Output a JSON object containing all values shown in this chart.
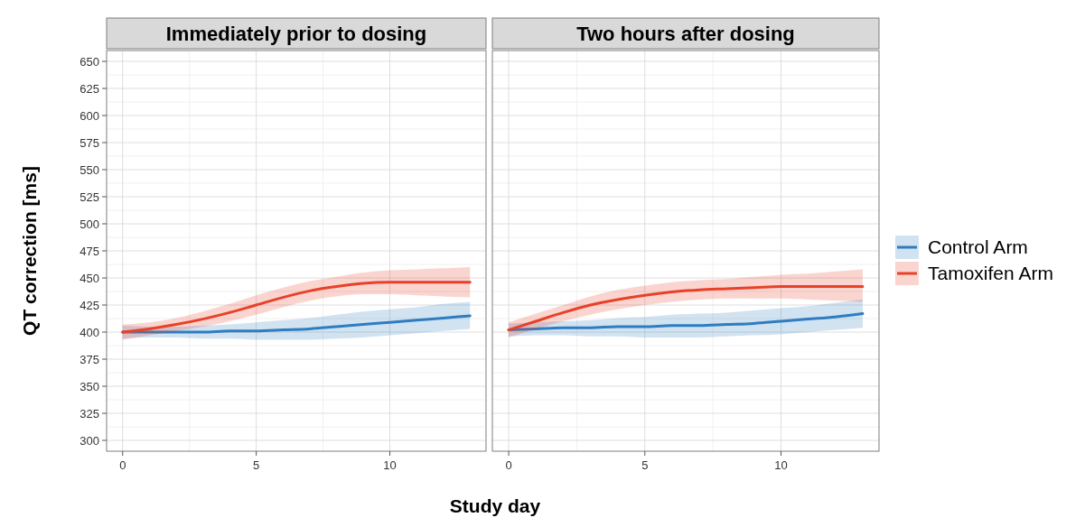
{
  "chart_data": [
    {
      "type": "line",
      "title": "Immediately prior to dosing",
      "xlabel": "Study day",
      "ylabel": "QT correction [ms]",
      "x": [
        0,
        1,
        2,
        3,
        4,
        5,
        6,
        7,
        8,
        9,
        10,
        11,
        12,
        13
      ],
      "xlim": [
        -0.6,
        13.6
      ],
      "xticks": [
        0,
        5,
        10
      ],
      "ylim": [
        290,
        660
      ],
      "yticks": [
        300,
        325,
        350,
        375,
        400,
        425,
        450,
        475,
        500,
        525,
        550,
        575,
        600,
        625,
        650
      ],
      "grid": true,
      "legend": false,
      "series": [
        {
          "color": "#2f7dc0",
          "values": [
            400,
            400,
            400,
            400,
            401,
            401,
            402,
            403,
            405,
            407,
            409,
            411,
            413,
            415
          ],
          "lower": [
            394,
            395,
            395,
            394,
            394,
            393,
            393,
            393,
            394,
            395,
            397,
            399,
            401,
            403
          ],
          "upper": [
            406,
            405,
            405,
            406,
            407,
            409,
            411,
            413,
            416,
            419,
            421,
            423,
            426,
            428
          ]
        },
        {
          "color": "#e8412a",
          "values": [
            400,
            403,
            407,
            412,
            418,
            425,
            432,
            438,
            442,
            445,
            446,
            446,
            446,
            446
          ],
          "lower": [
            393,
            397,
            401,
            405,
            410,
            416,
            423,
            429,
            433,
            435,
            435,
            434,
            433,
            432
          ],
          "upper": [
            407,
            409,
            413,
            419,
            426,
            434,
            441,
            447,
            451,
            455,
            457,
            458,
            459,
            460
          ]
        }
      ]
    },
    {
      "type": "line",
      "title": "Two hours after dosing",
      "x": [
        0,
        1,
        2,
        3,
        4,
        5,
        6,
        7,
        8,
        9,
        10,
        11,
        12,
        13
      ],
      "xlim": [
        -0.6,
        13.6
      ],
      "xticks": [
        0,
        5,
        10
      ],
      "ylim": [
        290,
        660
      ],
      "yticks": [
        300,
        325,
        350,
        375,
        400,
        425,
        450,
        475,
        500,
        525,
        550,
        575,
        600,
        625,
        650
      ],
      "grid": true,
      "legend": "right",
      "tick_labels": "x",
      "series": [
        {
          "name": "Control Arm",
          "color": "#2f7dc0",
          "values": [
            402,
            403,
            404,
            404,
            405,
            405,
            406,
            406,
            407,
            408,
            410,
            412,
            414,
            417
          ],
          "lower": [
            396,
            397,
            397,
            396,
            396,
            395,
            395,
            395,
            396,
            397,
            398,
            400,
            402,
            404
          ],
          "upper": [
            408,
            409,
            410,
            411,
            413,
            414,
            416,
            417,
            418,
            420,
            422,
            424,
            427,
            430
          ]
        },
        {
          "name": "Tamoxifen Arm",
          "color": "#e8412a",
          "values": [
            402,
            410,
            418,
            425,
            430,
            434,
            437,
            439,
            440,
            441,
            442,
            442,
            442,
            442
          ],
          "lower": [
            395,
            403,
            410,
            416,
            421,
            425,
            428,
            430,
            431,
            431,
            431,
            430,
            429,
            428
          ],
          "upper": [
            409,
            417,
            425,
            433,
            439,
            443,
            446,
            448,
            449,
            451,
            453,
            454,
            456,
            458
          ]
        }
      ]
    }
  ]
}
